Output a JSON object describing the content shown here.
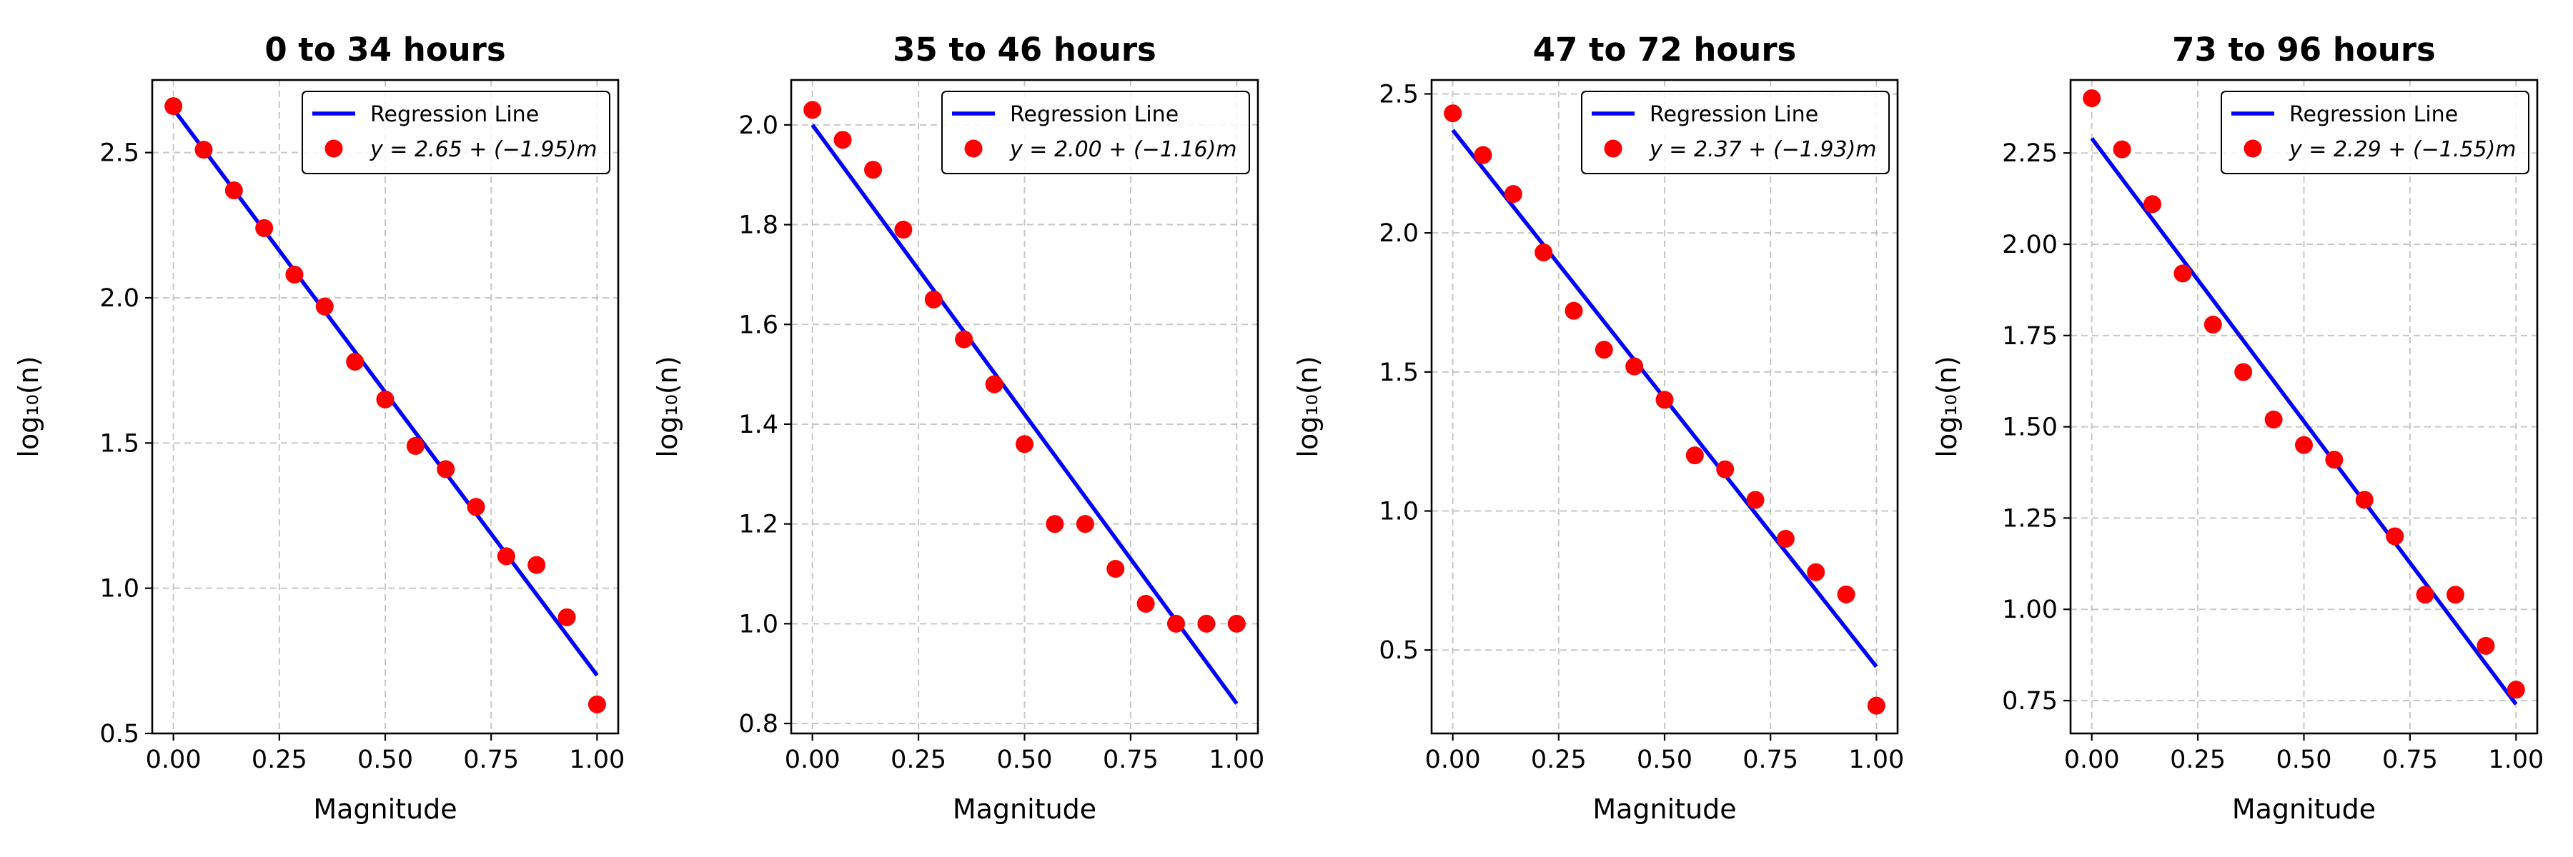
{
  "colors": {
    "line": "#0000ff",
    "points": "#ff0000",
    "grid": "#b0b0b0"
  },
  "chart_data": [
    {
      "type": "scatter",
      "title": "0 to 34 hours",
      "xlabel": "Magnitude",
      "ylabel": "log₁₀(n)",
      "xlim": [
        -0.05,
        1.05
      ],
      "ylim": [
        0.5,
        2.75
      ],
      "xticks": [
        0.0,
        0.25,
        0.5,
        0.75,
        1.0
      ],
      "xtick_labels": [
        "0.00",
        "0.25",
        "0.50",
        "0.75",
        "1.00"
      ],
      "yticks": [
        0.5,
        1.0,
        1.5,
        2.0,
        2.5
      ],
      "ytick_labels": [
        "0.5",
        "1.0",
        "1.5",
        "2.0",
        "2.5"
      ],
      "grid": true,
      "legend": {
        "position": "top-right",
        "line_label": "Regression Line",
        "points_label": "y = 2.65 + (−1.95)m"
      },
      "regression": {
        "intercept": 2.65,
        "slope": -1.95
      },
      "x": [
        0.0,
        0.0714,
        0.1429,
        0.2143,
        0.2857,
        0.3571,
        0.4286,
        0.5,
        0.5714,
        0.6429,
        0.7143,
        0.7857,
        0.8571,
        0.9286,
        1.0
      ],
      "y": [
        2.66,
        2.51,
        2.37,
        2.24,
        2.08,
        1.97,
        1.78,
        1.65,
        1.49,
        1.41,
        1.28,
        1.11,
        1.08,
        0.9,
        0.6
      ]
    },
    {
      "type": "scatter",
      "title": "35 to 46 hours",
      "xlabel": "Magnitude",
      "ylabel": "log₁₀(n)",
      "xlim": [
        -0.05,
        1.05
      ],
      "ylim": [
        0.78,
        2.09
      ],
      "xticks": [
        0.0,
        0.25,
        0.5,
        0.75,
        1.0
      ],
      "xtick_labels": [
        "0.00",
        "0.25",
        "0.50",
        "0.75",
        "1.00"
      ],
      "yticks": [
        0.8,
        1.0,
        1.2,
        1.4,
        1.6,
        1.8,
        2.0
      ],
      "ytick_labels": [
        "0.8",
        "1.0",
        "1.2",
        "1.4",
        "1.6",
        "1.8",
        "2.0"
      ],
      "grid": true,
      "legend": {
        "position": "top-right",
        "line_label": "Regression Line",
        "points_label": "y = 2.00 + (−1.16)m"
      },
      "regression": {
        "intercept": 2.0,
        "slope": -1.16
      },
      "x": [
        0.0,
        0.0714,
        0.1429,
        0.2143,
        0.2857,
        0.3571,
        0.4286,
        0.5,
        0.5714,
        0.6429,
        0.7143,
        0.7857,
        0.8571,
        0.9286,
        1.0
      ],
      "y": [
        2.03,
        1.97,
        1.91,
        1.79,
        1.65,
        1.57,
        1.48,
        1.36,
        1.2,
        1.2,
        1.11,
        1.04,
        1.0,
        1.0,
        1.0
      ]
    },
    {
      "type": "scatter",
      "title": "47 to 72 hours",
      "xlabel": "Magnitude",
      "ylabel": "log₁₀(n)",
      "xlim": [
        -0.05,
        1.05
      ],
      "ylim": [
        0.2,
        2.55
      ],
      "xticks": [
        0.0,
        0.25,
        0.5,
        0.75,
        1.0
      ],
      "xtick_labels": [
        "0.00",
        "0.25",
        "0.50",
        "0.75",
        "1.00"
      ],
      "yticks": [
        0.5,
        1.0,
        1.5,
        2.0,
        2.5
      ],
      "ytick_labels": [
        "0.5",
        "1.0",
        "1.5",
        "2.0",
        "2.5"
      ],
      "grid": true,
      "legend": {
        "position": "top-right",
        "line_label": "Regression Line",
        "points_label": "y = 2.37 + (−1.93)m"
      },
      "regression": {
        "intercept": 2.37,
        "slope": -1.93
      },
      "x": [
        0.0,
        0.0714,
        0.1429,
        0.2143,
        0.2857,
        0.3571,
        0.4286,
        0.5,
        0.5714,
        0.6429,
        0.7143,
        0.7857,
        0.8571,
        0.9286,
        1.0
      ],
      "y": [
        2.43,
        2.28,
        2.14,
        1.93,
        1.72,
        1.58,
        1.52,
        1.4,
        1.2,
        1.15,
        1.04,
        0.9,
        0.78,
        0.7,
        0.3
      ]
    },
    {
      "type": "scatter",
      "title": "73 to 96 hours",
      "xlabel": "Magnitude",
      "ylabel": "log₁₀(n)",
      "xlim": [
        -0.05,
        1.05
      ],
      "ylim": [
        0.66,
        2.45
      ],
      "xticks": [
        0.0,
        0.25,
        0.5,
        0.75,
        1.0
      ],
      "xtick_labels": [
        "0.00",
        "0.25",
        "0.50",
        "0.75",
        "1.00"
      ],
      "yticks": [
        0.75,
        1.0,
        1.25,
        1.5,
        1.75,
        2.0,
        2.25
      ],
      "ytick_labels": [
        "0.75",
        "1.00",
        "1.25",
        "1.50",
        "1.75",
        "2.00",
        "2.25"
      ],
      "grid": true,
      "legend": {
        "position": "top-right",
        "line_label": "Regression Line",
        "points_label": "y = 2.29 + (−1.55)m"
      },
      "regression": {
        "intercept": 2.29,
        "slope": -1.55
      },
      "x": [
        0.0,
        0.0714,
        0.1429,
        0.2143,
        0.2857,
        0.3571,
        0.4286,
        0.5,
        0.5714,
        0.6429,
        0.7143,
        0.7857,
        0.8571,
        0.9286,
        1.0
      ],
      "y": [
        2.4,
        2.26,
        2.11,
        1.92,
        1.78,
        1.65,
        1.52,
        1.45,
        1.41,
        1.3,
        1.2,
        1.04,
        1.04,
        0.9,
        0.78
      ]
    }
  ]
}
